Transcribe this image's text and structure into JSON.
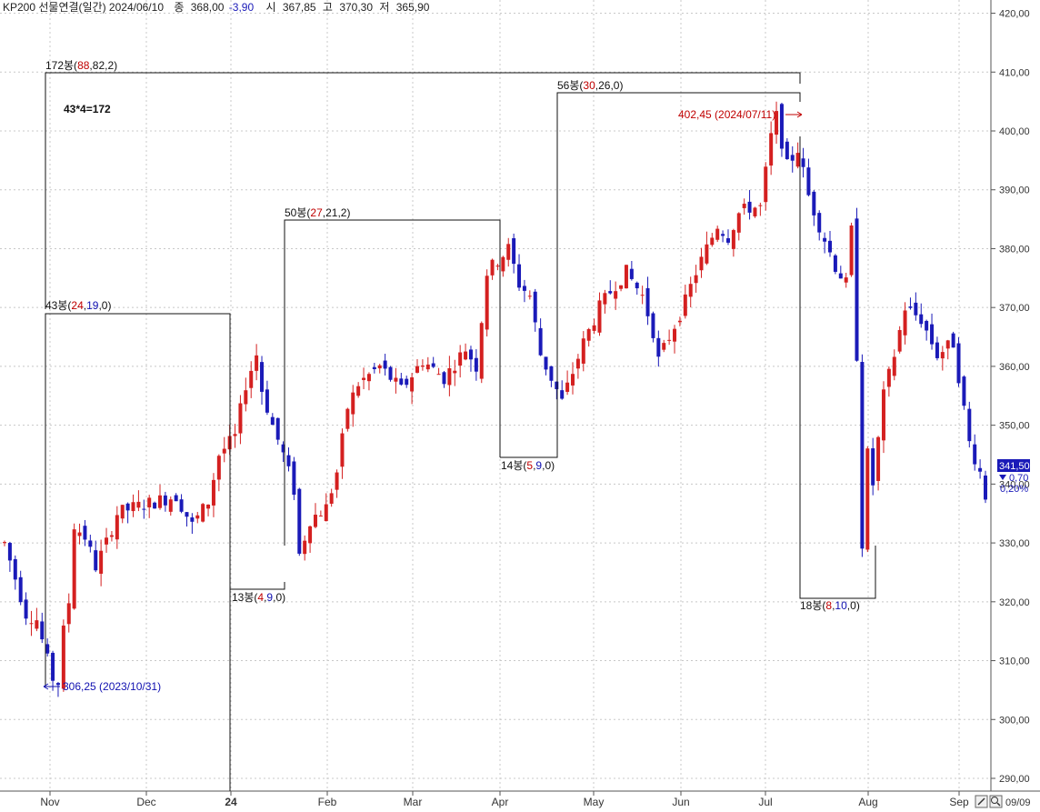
{
  "header": {
    "title": "KP200 선물연결(일간) 2024/06/10",
    "close_label": "종",
    "close_value": "368,00",
    "change_value": "-3,90",
    "open_label": "시",
    "open_value": "367,85",
    "high_label": "고",
    "high_value": "370,30",
    "low_label": "저",
    "low_value": "365,90"
  },
  "price_tag": {
    "last_price": "341,50",
    "change": "0,70",
    "change_pct": "0,20%",
    "date": "09/09"
  },
  "colors": {
    "up": "#d42020",
    "down": "#1a1ab8",
    "grid": "#c8c8c8",
    "tag_bg": "#1a1ab8"
  },
  "annotations": {
    "formula": "43*4=172",
    "low_point": "306,25 (2023/10/31)",
    "high_point": "402,45 (2024/07/11)",
    "boxes": [
      {
        "name": "box-172",
        "count": "172봉(",
        "a": "88",
        "b": "82",
        "c": "2"
      },
      {
        "name": "box-43",
        "count": "43봉(",
        "a": "24",
        "b": "19",
        "c": "0"
      },
      {
        "name": "box-13",
        "count": "13봉(",
        "a": "4",
        "b": "9",
        "c": "0"
      },
      {
        "name": "box-50",
        "count": "50봉(",
        "a": "27",
        "b": "21",
        "c": "2"
      },
      {
        "name": "box-14",
        "count": "14봉(",
        "a": "5",
        "b": "9",
        "c": "0"
      },
      {
        "name": "box-56",
        "count": "56봉(",
        "a": "30",
        "b": "26",
        "c": "0"
      },
      {
        "name": "box-18",
        "count": "18봉(",
        "a": "8",
        "b": "10",
        "c": "0"
      }
    ]
  },
  "chart_data": {
    "type": "candlestick",
    "y_ticks": [
      "420,00",
      "410,00",
      "400,00",
      "390,00",
      "380,00",
      "370,00",
      "360,00",
      "350,00",
      "340,00",
      "330,00",
      "320,00",
      "310,00",
      "300,00",
      "290,00"
    ],
    "ylim": [
      288,
      422
    ],
    "x_labels": [
      "Nov",
      "Dec",
      "24",
      "Feb",
      "Mar",
      "Apr",
      "May",
      "Jun",
      "Jul",
      "Aug",
      "Sep"
    ],
    "grid": true,
    "trend_points": [
      [
        0,
        330
      ],
      [
        2,
        324
      ],
      [
        4,
        318
      ],
      [
        6,
        317
      ],
      [
        8,
        310
      ],
      [
        9,
        307
      ],
      [
        10,
        306.25
      ],
      [
        11,
        315
      ],
      [
        12,
        320
      ],
      [
        13,
        333
      ],
      [
        15,
        331
      ],
      [
        17,
        326
      ],
      [
        19,
        330
      ],
      [
        21,
        335
      ],
      [
        24,
        336
      ],
      [
        28,
        337
      ],
      [
        32,
        338
      ],
      [
        35,
        333
      ],
      [
        38,
        337
      ],
      [
        40,
        345
      ],
      [
        43,
        348
      ],
      [
        45,
        357
      ],
      [
        47,
        362
      ],
      [
        48,
        356
      ],
      [
        50,
        350
      ],
      [
        52,
        345
      ],
      [
        54,
        339
      ],
      [
        55,
        328
      ],
      [
        57,
        334
      ],
      [
        60,
        336
      ],
      [
        62,
        342
      ],
      [
        64,
        353
      ],
      [
        66,
        357
      ],
      [
        70,
        360
      ],
      [
        74,
        356
      ],
      [
        78,
        361
      ],
      [
        82,
        358
      ],
      [
        86,
        363
      ],
      [
        88,
        360
      ],
      [
        90,
        376
      ],
      [
        93,
        379
      ],
      [
        94,
        380
      ],
      [
        96,
        374
      ],
      [
        98,
        372
      ],
      [
        100,
        362
      ],
      [
        102,
        358
      ],
      [
        104,
        354
      ],
      [
        106,
        359
      ],
      [
        108,
        364
      ],
      [
        111,
        370
      ],
      [
        114,
        374
      ],
      [
        116,
        376
      ],
      [
        119,
        372
      ],
      [
        121,
        366
      ],
      [
        122,
        361
      ],
      [
        124,
        365
      ],
      [
        127,
        371
      ],
      [
        129,
        376
      ],
      [
        131,
        380
      ],
      [
        133,
        384
      ],
      [
        135,
        382
      ],
      [
        137,
        386
      ],
      [
        139,
        387
      ],
      [
        141,
        387
      ],
      [
        143,
        399
      ],
      [
        144,
        402.45
      ],
      [
        146,
        394
      ],
      [
        148,
        397
      ],
      [
        150,
        389
      ],
      [
        152,
        384
      ],
      [
        155,
        377
      ],
      [
        157,
        374
      ],
      [
        158,
        383
      ],
      [
        159,
        362
      ],
      [
        160,
        330
      ],
      [
        161,
        345
      ],
      [
        162,
        340
      ],
      [
        164,
        355
      ],
      [
        166,
        362
      ],
      [
        168,
        370
      ],
      [
        171,
        368
      ],
      [
        174,
        362
      ],
      [
        177,
        364
      ],
      [
        180,
        347
      ],
      [
        182,
        342
      ],
      [
        183,
        338
      ]
    ]
  }
}
